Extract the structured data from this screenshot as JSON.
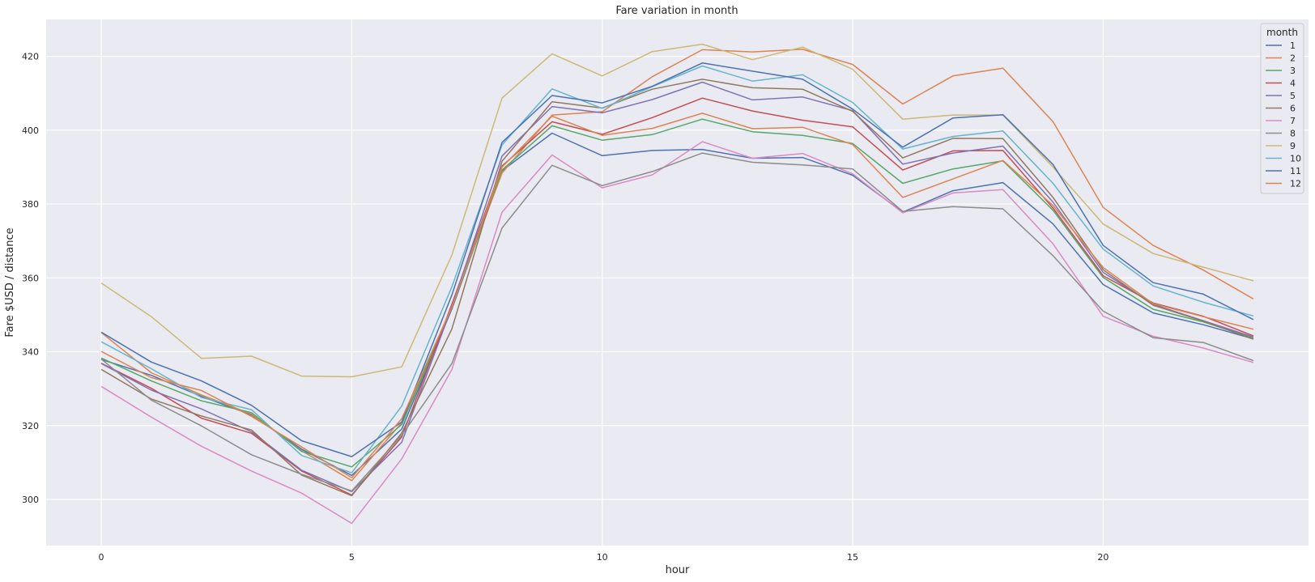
{
  "chart_data": {
    "type": "line",
    "title": "Fare variation in month",
    "xlabel": "hour",
    "ylabel": "Fare $USD / distance",
    "xlim": [
      -1.1,
      24.1
    ],
    "ylim": [
      287.5,
      430
    ],
    "x_ticks": [
      0,
      5,
      10,
      15,
      20
    ],
    "y_ticks": [
      300,
      320,
      340,
      360,
      380,
      400,
      420
    ],
    "grid": true,
    "legend_title": "month",
    "legend_position": "top-right",
    "x": [
      0,
      1,
      2,
      3,
      4,
      5,
      6,
      7,
      8,
      9,
      10,
      11,
      12,
      13,
      14,
      15,
      16,
      17,
      18,
      19,
      20,
      21,
      22,
      23
    ],
    "series": [
      {
        "name": "1",
        "color": "#4c72b0",
        "values": [
          337.9,
          333.6,
          327.9,
          322.9,
          313.6,
          306.5,
          319.1,
          351.6,
          389.0,
          399.2,
          393.1,
          394.5,
          394.8,
          392.4,
          392.6,
          387.8,
          377.8,
          383.6,
          385.8,
          374.6,
          358.2,
          350.5,
          347.3,
          343.5
        ]
      },
      {
        "name": "2",
        "color": "#dd8452",
        "values": [
          345.2,
          334.3,
          328.3,
          323.1,
          313.2,
          305.1,
          320.8,
          352.3,
          388.4,
          404.1,
          405.0,
          414.5,
          421.8,
          421.2,
          421.9,
          417.8,
          407.1,
          414.7,
          416.8,
          402.3,
          379.1,
          368.8,
          362.1,
          354.3
        ]
      },
      {
        "name": "3",
        "color": "#55a868",
        "values": [
          338.3,
          332.1,
          326.7,
          323.5,
          313.0,
          308.8,
          320.3,
          352.0,
          389.2,
          401.2,
          397.3,
          398.8,
          403.0,
          399.6,
          398.6,
          396.4,
          385.6,
          389.5,
          391.7,
          378.3,
          360.1,
          351.5,
          348.1,
          343.7
        ]
      },
      {
        "name": "4",
        "color": "#c44e52",
        "values": [
          336.9,
          330.1,
          322.0,
          317.9,
          307.7,
          301.2,
          316.9,
          352.9,
          390.3,
          402.3,
          398.9,
          403.4,
          408.7,
          405.2,
          402.7,
          400.9,
          389.2,
          394.4,
          394.5,
          378.9,
          360.6,
          353.2,
          349.6,
          344.3
        ]
      },
      {
        "name": "5",
        "color": "#8172b3",
        "values": [
          336.8,
          329.6,
          324.5,
          318.3,
          307.9,
          302.1,
          315.5,
          352.2,
          393.0,
          406.4,
          404.7,
          408.3,
          413.0,
          408.2,
          409.0,
          405.3,
          390.8,
          393.8,
          395.7,
          380.5,
          361.5,
          352.8,
          348.4,
          344.0
        ]
      },
      {
        "name": "6",
        "color": "#937860",
        "values": [
          335.2,
          327.2,
          322.6,
          318.8,
          306.6,
          301.0,
          318.0,
          346.2,
          391.6,
          407.7,
          406.0,
          411.1,
          413.8,
          411.5,
          411.1,
          405.1,
          392.5,
          397.8,
          397.7,
          381.8,
          362.2,
          352.6,
          348.3,
          343.4
        ]
      },
      {
        "name": "7",
        "color": "#da8bc3",
        "values": [
          330.6,
          322.3,
          314.4,
          307.7,
          301.7,
          293.5,
          311.0,
          335.2,
          377.8,
          393.3,
          384.4,
          387.9,
          396.9,
          392.4,
          393.7,
          388.2,
          377.6,
          383.0,
          383.9,
          369.2,
          349.6,
          344.2,
          341.0,
          337.1
        ]
      },
      {
        "name": "8",
        "color": "#8c8c8c",
        "values": [
          338.0,
          326.9,
          319.9,
          312.1,
          306.8,
          302.3,
          317.4,
          336.8,
          373.5,
          390.5,
          385.0,
          388.8,
          393.8,
          391.3,
          390.6,
          389.5,
          378.0,
          379.3,
          378.7,
          366.0,
          351.0,
          343.8,
          342.5,
          337.6
        ]
      },
      {
        "name": "9",
        "color": "#ccb974",
        "values": [
          358.6,
          349.5,
          338.2,
          338.8,
          333.4,
          333.2,
          335.9,
          366.2,
          408.7,
          420.7,
          414.7,
          421.3,
          423.3,
          419.1,
          422.5,
          416.5,
          403.0,
          404.1,
          404.1,
          390.0,
          374.6,
          366.6,
          362.9,
          359.2
        ]
      },
      {
        "name": "10",
        "color": "#64b5cd",
        "values": [
          342.7,
          335.4,
          327.6,
          324.3,
          311.9,
          307.2,
          325.3,
          357.6,
          396.0,
          411.2,
          405.9,
          411.8,
          417.4,
          413.3,
          415.0,
          407.5,
          394.9,
          398.3,
          399.8,
          385.6,
          367.8,
          357.8,
          353.4,
          349.7
        ]
      },
      {
        "name": "11",
        "color": "#4c72b0",
        "values": [
          345.3,
          337.2,
          332.1,
          325.5,
          315.9,
          311.6,
          321.0,
          355.4,
          396.7,
          409.4,
          407.4,
          411.9,
          418.2,
          416.0,
          413.8,
          405.7,
          395.4,
          403.3,
          404.2,
          390.7,
          368.8,
          358.7,
          355.6,
          348.7
        ]
      },
      {
        "name": "12",
        "color": "#dd8452",
        "values": [
          340.1,
          333.0,
          329.5,
          322.5,
          314.2,
          305.9,
          321.9,
          352.1,
          390.0,
          403.8,
          398.6,
          400.5,
          404.6,
          400.4,
          400.8,
          396.1,
          381.8,
          386.8,
          391.8,
          379.6,
          362.8,
          353.0,
          349.5,
          346.1
        ]
      }
    ]
  }
}
